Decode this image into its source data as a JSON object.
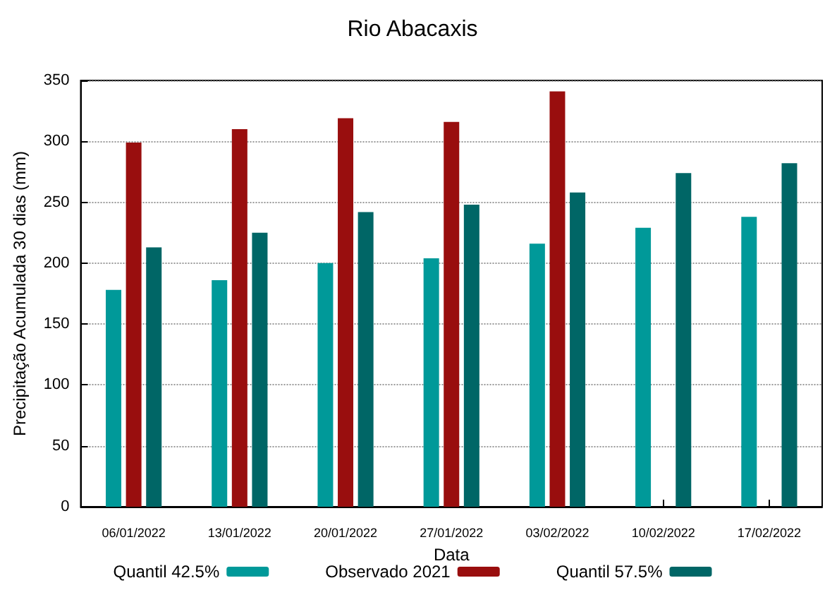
{
  "chart_data": {
    "type": "bar",
    "title": "Rio Abacaxis",
    "xlabel": "Data",
    "ylabel": "Precipitação Acumulada 30 dias (mm)",
    "categories": [
      "06/01/2022",
      "13/01/2022",
      "20/01/2022",
      "27/01/2022",
      "03/02/2022",
      "10/02/2022",
      "17/02/2022"
    ],
    "series": [
      {
        "name": "Quantil 42.5%",
        "color": "#009999",
        "values": [
          178,
          186,
          200,
          204,
          216,
          229,
          238
        ]
      },
      {
        "name": "Observado 2021",
        "color": "#990e0e",
        "values": [
          299,
          310,
          319,
          316,
          341,
          null,
          null
        ]
      },
      {
        "name": "Quantil 57.5%",
        "color": "#006666",
        "values": [
          213,
          225,
          242,
          248,
          258,
          274,
          282
        ]
      }
    ],
    "ylim": [
      0,
      350
    ],
    "yticks": [
      0,
      50,
      100,
      150,
      200,
      250,
      300,
      350
    ],
    "grid": "y",
    "legend": "bottom"
  }
}
